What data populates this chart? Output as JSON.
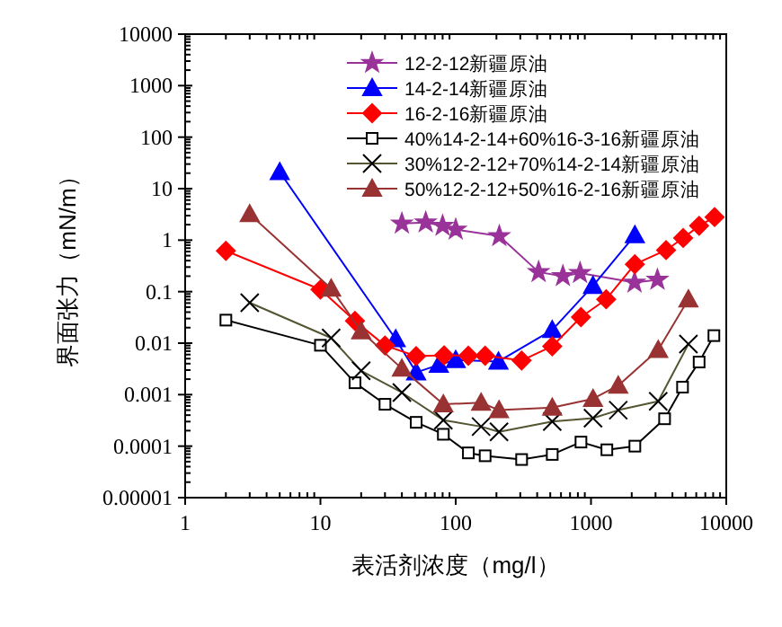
{
  "chart_data": {
    "type": "line",
    "xlabel": "表活剂浓度（mg/l）",
    "ylabel": "界面张力（mN/m）",
    "log": "xy",
    "xlim": [
      1,
      10000
    ],
    "ylim": [
      1e-05,
      10000
    ],
    "xticks": [
      1,
      10,
      100,
      1000,
      10000
    ],
    "yticks": [
      {
        "value": 1e-05,
        "label": "0.00001"
      },
      {
        "value": 0.0001,
        "label": "0.0001"
      },
      {
        "value": 0.001,
        "label": "0.001"
      },
      0.01,
      0.1,
      1,
      10,
      100,
      1000,
      10000
    ],
    "grid": false,
    "legend": "top right",
    "line_style": "solid",
    "series": [
      {
        "name": "12-2-12新疆原油",
        "color": "#993399",
        "marker": "star",
        "x": [
          40,
          60,
          80,
          100,
          210,
          410,
          620,
          830,
          2100,
          3100
        ],
        "values": [
          2.1,
          2.2,
          1.9,
          1.6,
          1.2,
          0.24,
          0.2,
          0.23,
          0.15,
          0.17
        ]
      },
      {
        "name": "14-2-14新疆原油",
        "color": "#0000ff",
        "marker": "triangle",
        "x": [
          5,
          36,
          51,
          75,
          100,
          207,
          517,
          1035,
          2110
        ],
        "values": [
          21,
          0.012,
          0.0027,
          0.0038,
          0.0047,
          0.0044,
          0.018,
          0.13,
          1.25
        ]
      },
      {
        "name": "16-2-16新疆原油",
        "color": "#ff0000",
        "marker": "diamond",
        "x": [
          2,
          10,
          18,
          30,
          51,
          82,
          124,
          165,
          307,
          517,
          843,
          1295,
          2110,
          3590,
          4800,
          6300,
          8200
        ],
        "values": [
          0.62,
          0.11,
          0.027,
          0.009,
          0.0056,
          0.0058,
          0.0057,
          0.0057,
          0.0046,
          0.0087,
          0.032,
          0.071,
          0.34,
          0.64,
          1.1,
          1.9,
          2.8
        ]
      },
      {
        "name": "40%14-2-14+60%16-3-16新疆原油",
        "color": "#000000",
        "marker": "square",
        "x": [
          2,
          10,
          18,
          30,
          51,
          81,
          124,
          165,
          307,
          517,
          843,
          1310,
          2110,
          3500,
          4750,
          6300,
          8100
        ],
        "values": [
          0.028,
          0.0091,
          0.0017,
          0.00065,
          0.00029,
          0.00017,
          7.4e-05,
          6.5e-05,
          5.5e-05,
          6.9e-05,
          0.00012,
          8.5e-05,
          0.0001,
          0.00034,
          0.0014,
          0.0043,
          0.014
        ]
      },
      {
        "name": "30%12-2-12+70%14-2-14新疆原油",
        "color": "#555533",
        "marker": "cross",
        "x": [
          3,
          12,
          20,
          40,
          81,
          154,
          209,
          517,
          1035,
          1590,
          3140,
          5250
        ],
        "values": [
          0.061,
          0.0126,
          0.0029,
          0.0011,
          0.00032,
          0.00024,
          0.00019,
          0.0003,
          0.00035,
          0.0005,
          0.00074,
          0.0096
        ]
      },
      {
        "name": "50%12-2-12+50%16-2-16新疆原油",
        "color": "#993333",
        "marker": "triangle",
        "x": [
          3,
          12,
          20,
          40,
          81,
          154,
          209,
          517,
          1035,
          1590,
          3140,
          5250
        ],
        "values": [
          3.2,
          0.115,
          0.017,
          0.0032,
          0.00065,
          0.0007,
          0.0005,
          0.00056,
          0.00083,
          0.0015,
          0.0074,
          0.071
        ]
      }
    ]
  }
}
